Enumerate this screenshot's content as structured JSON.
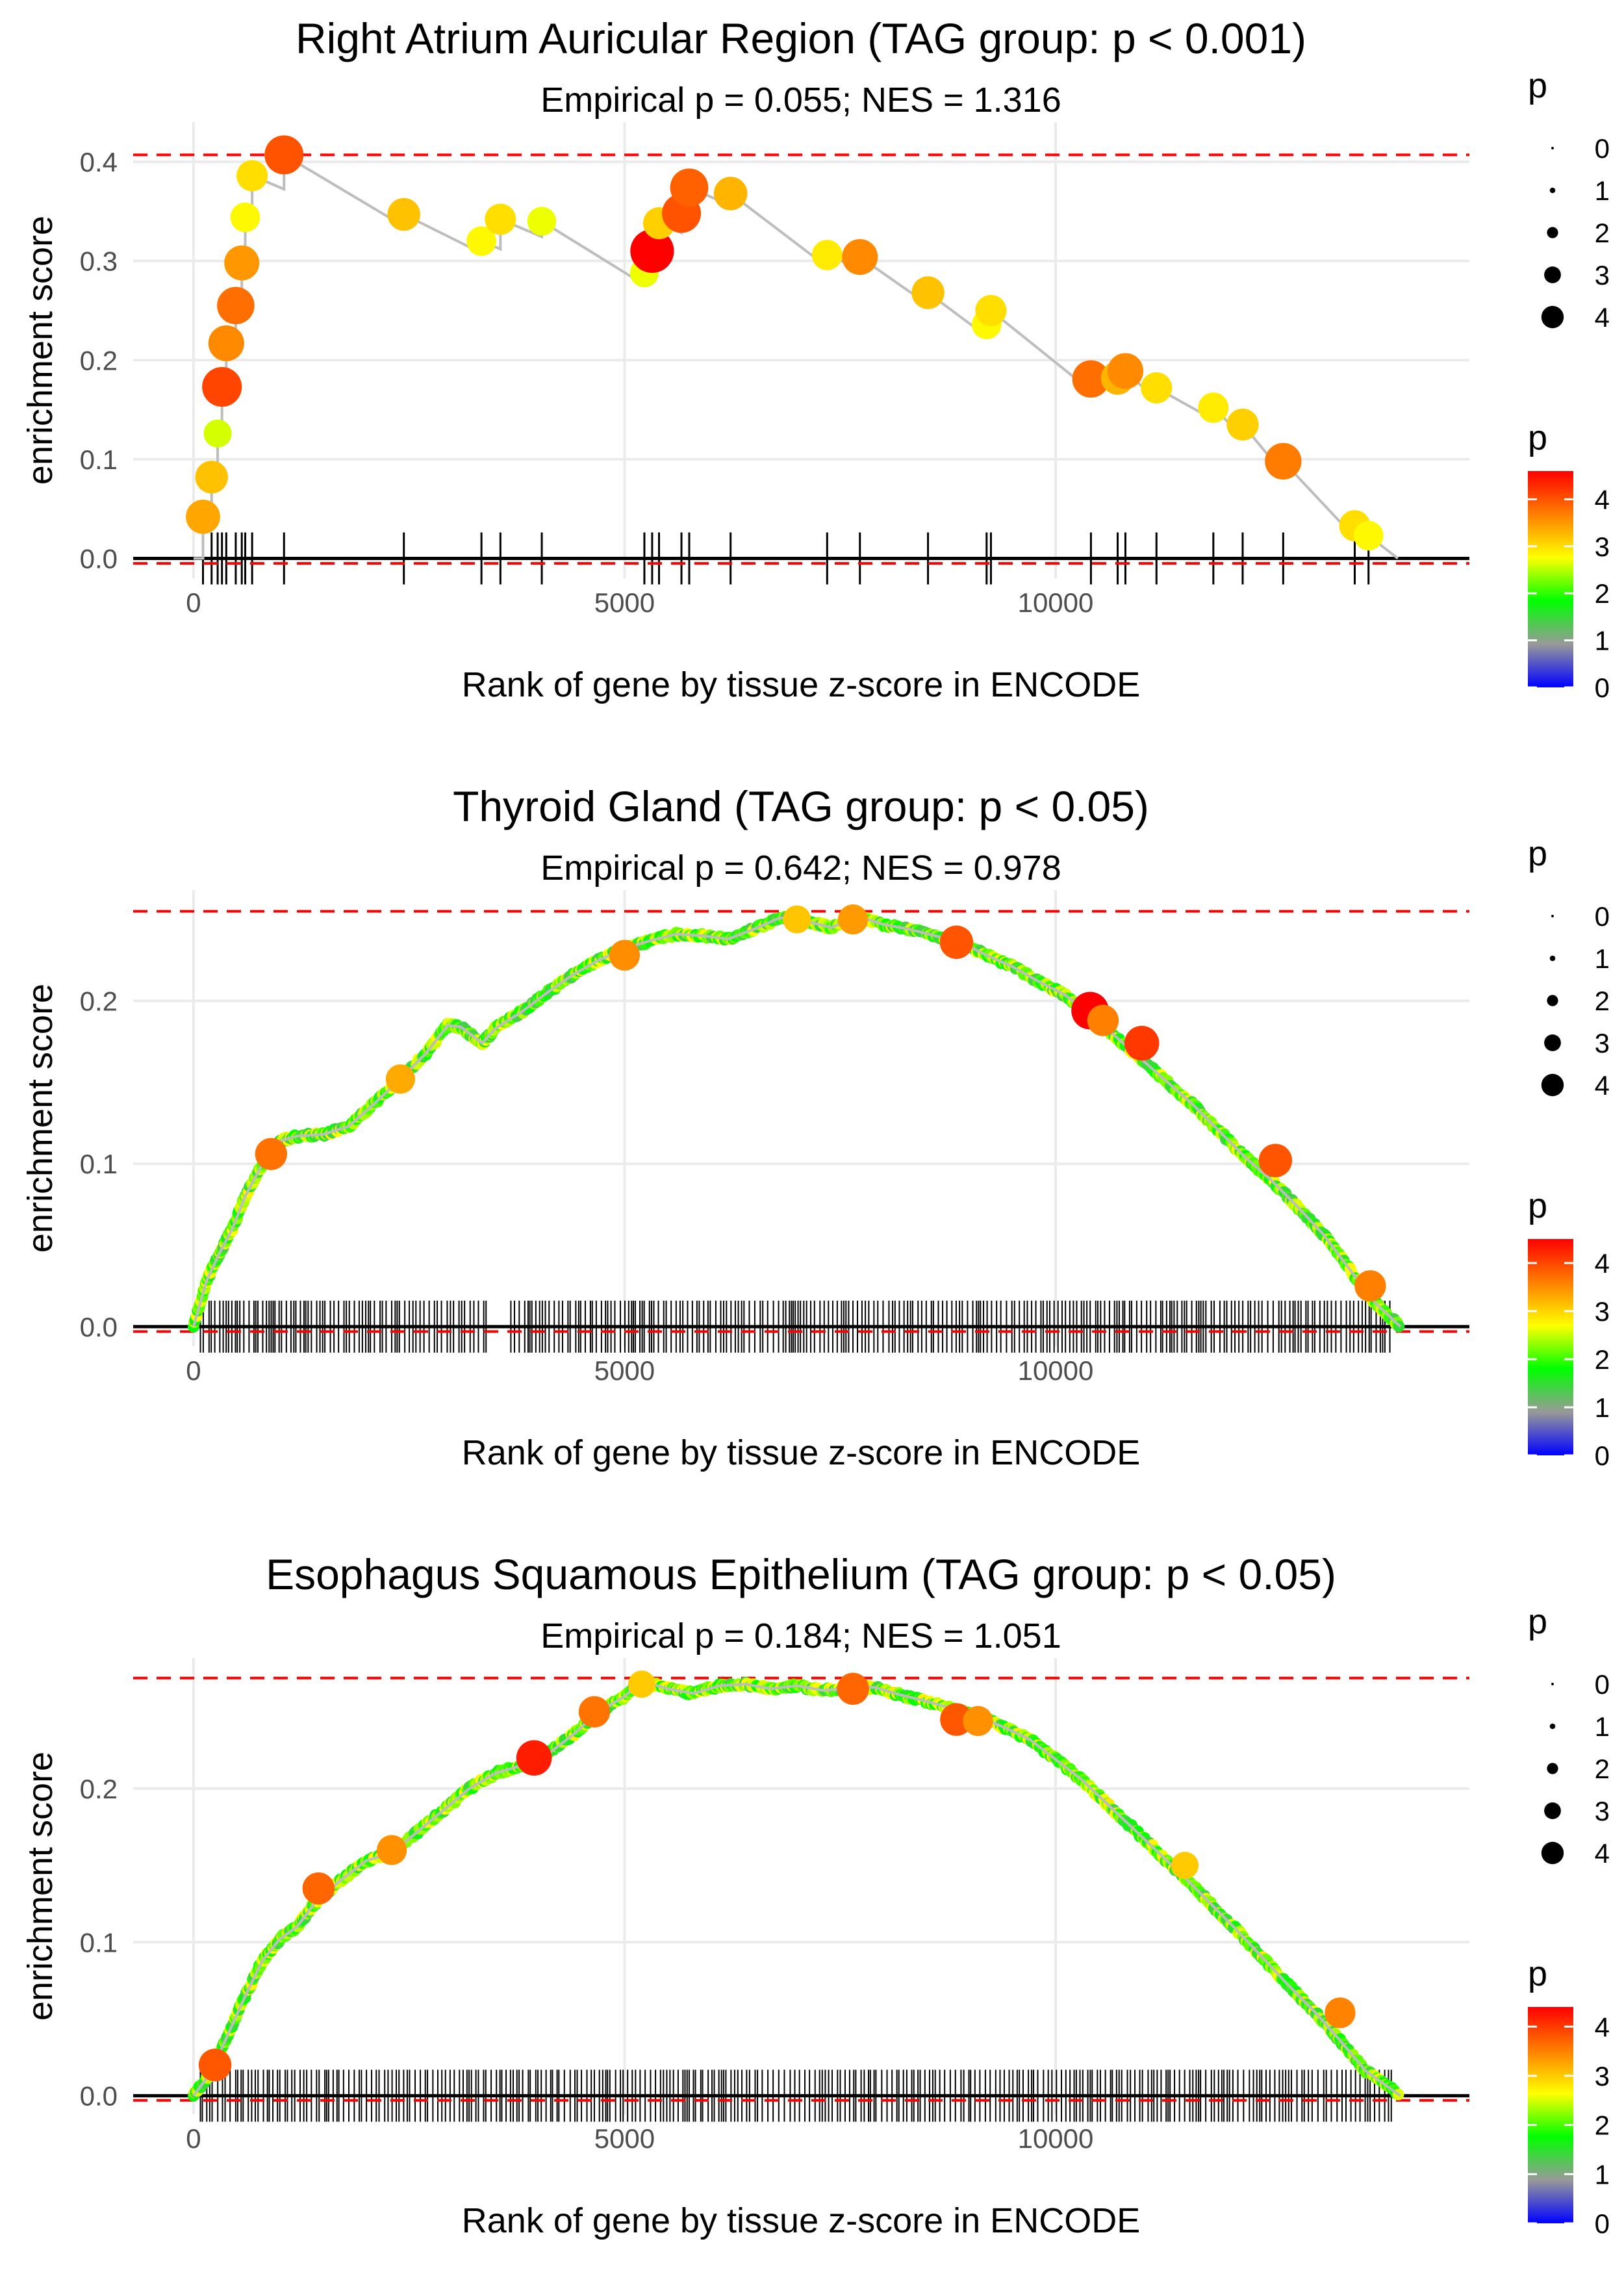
{
  "chart_data": [
    {
      "type": "line",
      "title": "Right Atrium Auricular Region (TAG group: p < 0.001)",
      "subtitle": "Empirical p = 0.055; NES = 1.316",
      "xlabel": "Rank of gene by tissue z-score in ENCODE",
      "ylabel": "enrichment score",
      "xlim": [
        -700,
        14800
      ],
      "ylim": [
        -0.02,
        0.44
      ],
      "xticks": [
        0,
        5000,
        10000
      ],
      "xtick_labels": [
        "0",
        "5000",
        "10000"
      ],
      "yticks": [
        0.0,
        0.1,
        0.2,
        0.3,
        0.4
      ],
      "ytick_labels": [
        "0.0",
        "0.1",
        "0.2",
        "0.3",
        "0.4"
      ],
      "hlines": [
        0.407,
        -0.005
      ],
      "series_mode": "points",
      "series": [
        {
          "name": "running enrichment score",
          "x": [
            0,
            110,
            210,
            280,
            330,
            380,
            490,
            560,
            600,
            680,
            1050,
            2440,
            3340,
            3560,
            4040,
            5230,
            5320,
            5400,
            5660,
            5750,
            6230,
            7350,
            7730,
            8520,
            9200,
            9250,
            10410,
            10720,
            10810,
            11170,
            11830,
            12170,
            12640,
            13470,
            13630,
            13970
          ],
          "y": [
            0.0,
            0.042,
            0.082,
            0.126,
            0.173,
            0.217,
            0.255,
            0.298,
            0.344,
            0.386,
            0.407,
            0.347,
            0.32,
            0.342,
            0.34,
            0.288,
            0.31,
            0.338,
            0.348,
            0.374,
            0.368,
            0.306,
            0.304,
            0.268,
            0.236,
            0.25,
            0.181,
            0.182,
            0.189,
            0.172,
            0.152,
            0.135,
            0.098,
            0.033,
            0.023,
            0.0
          ],
          "p": [
            0,
            3.4,
            3.2,
            2.6,
            4.1,
            3.6,
            3.8,
            3.5,
            2.8,
            3.0,
            4.0,
            3.2,
            2.8,
            3.0,
            2.7,
            2.7,
            4.6,
            3.1,
            4.0,
            3.9,
            3.3,
            2.9,
            3.6,
            3.2,
            2.8,
            3.0,
            3.8,
            3.3,
            3.6,
            3.0,
            2.9,
            3.1,
            3.7,
            3.0,
            2.8,
            0
          ]
        }
      ],
      "point_size_legend": {
        "title": "p",
        "values": [
          0,
          1,
          2,
          3,
          4
        ],
        "labels": [
          "0",
          "1",
          "2",
          "3",
          "4"
        ]
      },
      "color_legend": {
        "title": "p",
        "range": [
          0,
          4.6
        ],
        "ticks": [
          0,
          1,
          2,
          3,
          4
        ],
        "tick_labels": [
          "0",
          "1",
          "2",
          "3",
          "4"
        ],
        "colors": [
          "#0000ff",
          "#999999",
          "#00ff00",
          "#ffff00",
          "#ff7f00",
          "#ff0000"
        ]
      }
    },
    {
      "type": "line",
      "title": "Thyroid Gland (TAG group: p < 0.05)",
      "subtitle": "Empirical p = 0.642; NES = 0.978",
      "xlabel": "Rank of gene by tissue z-score in ENCODE",
      "ylabel": "enrichment score",
      "xlim": [
        -700,
        14800
      ],
      "ylim": [
        -0.012,
        0.268
      ],
      "xticks": [
        0,
        5000,
        10000
      ],
      "xtick_labels": [
        "0",
        "5000",
        "10000"
      ],
      "yticks": [
        0.0,
        0.1,
        0.2
      ],
      "ytick_labels": [
        "0.0",
        "0.1",
        "0.2"
      ],
      "hlines": [
        0.255,
        -0.003
      ],
      "series_mode": "dense",
      "series": [
        {
          "name": "running enrichment score",
          "x": [
            0,
            150,
            300,
            450,
            600,
            800,
            1000,
            1200,
            1500,
            1800,
            2100,
            2400,
            2700,
            2950,
            3100,
            3350,
            3500,
            3800,
            4100,
            4400,
            4700,
            5000,
            5300,
            5600,
            5900,
            6200,
            6500,
            6800,
            7100,
            7400,
            7700,
            8000,
            8300,
            8600,
            8900,
            9200,
            9500,
            9800,
            10100,
            10400,
            10700,
            11000,
            11300,
            11600,
            11900,
            12200,
            12500,
            12800,
            13100,
            13400,
            13700,
            14000
          ],
          "y": [
            0.0,
            0.028,
            0.045,
            0.06,
            0.08,
            0.1,
            0.114,
            0.117,
            0.118,
            0.123,
            0.137,
            0.152,
            0.168,
            0.185,
            0.184,
            0.174,
            0.183,
            0.193,
            0.205,
            0.216,
            0.225,
            0.232,
            0.237,
            0.241,
            0.24,
            0.238,
            0.244,
            0.251,
            0.249,
            0.245,
            0.252,
            0.247,
            0.244,
            0.24,
            0.236,
            0.228,
            0.221,
            0.212,
            0.204,
            0.192,
            0.178,
            0.164,
            0.15,
            0.136,
            0.12,
            0.104,
            0.09,
            0.074,
            0.057,
            0.036,
            0.015,
            0.0
          ]
        }
      ],
      "highlight_points": {
        "x": [
          900,
          2400,
          5000,
          7000,
          7650,
          8850,
          10400,
          10550,
          11000,
          12550,
          13650
        ],
        "y": [
          0.106,
          0.152,
          0.228,
          0.25,
          0.25,
          0.236,
          0.194,
          0.188,
          0.174,
          0.102,
          0.025
        ],
        "p": [
          3.7,
          3.3,
          3.5,
          3.1,
          3.4,
          3.9,
          4.5,
          3.6,
          4.1,
          3.9,
          3.6
        ]
      },
      "point_size_legend": {
        "title": "p",
        "values": [
          0,
          1,
          2,
          3,
          4
        ],
        "labels": [
          "0",
          "1",
          "2",
          "3",
          "4"
        ]
      },
      "color_legend": {
        "title": "p",
        "range": [
          0,
          4.5
        ],
        "ticks": [
          0,
          1,
          2,
          3,
          4
        ],
        "tick_labels": [
          "0",
          "1",
          "2",
          "3",
          "4"
        ],
        "colors": [
          "#0000ff",
          "#999999",
          "#00ff00",
          "#ffff00",
          "#ff7f00",
          "#ff0000"
        ]
      }
    },
    {
      "type": "line",
      "title": "Esophagus Squamous Epithelium (TAG group: p < 0.05)",
      "subtitle": "Empirical p = 0.184; NES = 1.051",
      "xlabel": "Rank of gene by tissue z-score in ENCODE",
      "ylabel": "enrichment score",
      "xlim": [
        -700,
        14800
      ],
      "ylim": [
        -0.012,
        0.285
      ],
      "xticks": [
        0,
        5000,
        10000
      ],
      "xtick_labels": [
        "0",
        "5000",
        "10000"
      ],
      "yticks": [
        0.0,
        0.1,
        0.2
      ],
      "ytick_labels": [
        "0.0",
        "0.1",
        "0.2"
      ],
      "hlines": [
        0.272,
        -0.003
      ],
      "series_mode": "dense",
      "series": [
        {
          "name": "running enrichment score",
          "x": [
            0,
            200,
            400,
            600,
            800,
            1000,
            1200,
            1400,
            1700,
            2000,
            2300,
            2600,
            2900,
            3200,
            3500,
            3800,
            4100,
            4400,
            4700,
            5000,
            5200,
            5500,
            5800,
            6100,
            6400,
            6700,
            7000,
            7300,
            7600,
            7900,
            8200,
            8500,
            8800,
            9100,
            9400,
            9700,
            10000,
            10300,
            10600,
            10900,
            11200,
            11500,
            11800,
            12100,
            12400,
            12700,
            13000,
            13300,
            13600,
            14000
          ],
          "y": [
            0.0,
            0.015,
            0.04,
            0.065,
            0.088,
            0.102,
            0.11,
            0.125,
            0.14,
            0.153,
            0.158,
            0.172,
            0.186,
            0.2,
            0.21,
            0.215,
            0.222,
            0.235,
            0.25,
            0.26,
            0.27,
            0.265,
            0.262,
            0.267,
            0.268,
            0.265,
            0.267,
            0.264,
            0.265,
            0.266,
            0.261,
            0.257,
            0.252,
            0.247,
            0.24,
            0.232,
            0.219,
            0.206,
            0.19,
            0.174,
            0.158,
            0.142,
            0.125,
            0.108,
            0.09,
            0.072,
            0.055,
            0.036,
            0.016,
            0.0
          ]
        }
      ],
      "highlight_points": {
        "x": [
          250,
          1450,
          2300,
          3950,
          4650,
          5200,
          7650,
          8850,
          9100,
          11500,
          13300
        ],
        "y": [
          0.02,
          0.135,
          0.16,
          0.22,
          0.25,
          0.268,
          0.265,
          0.245,
          0.244,
          0.15,
          0.054
        ],
        "p": [
          3.8,
          3.7,
          3.4,
          4.2,
          3.6,
          3.0,
          3.7,
          3.8,
          3.4,
          3.0,
          3.5
        ]
      },
      "point_size_legend": {
        "title": "p",
        "values": [
          0,
          1,
          2,
          3,
          4
        ],
        "labels": [
          "0",
          "1",
          "2",
          "3",
          "4"
        ]
      },
      "color_legend": {
        "title": "p",
        "range": [
          0,
          4.4
        ],
        "ticks": [
          0,
          1,
          2,
          3,
          4
        ],
        "tick_labels": [
          "0",
          "1",
          "2",
          "3",
          "4"
        ],
        "colors": [
          "#0000ff",
          "#999999",
          "#00ff00",
          "#ffff00",
          "#ff7f00",
          "#ff0000"
        ]
      }
    }
  ]
}
